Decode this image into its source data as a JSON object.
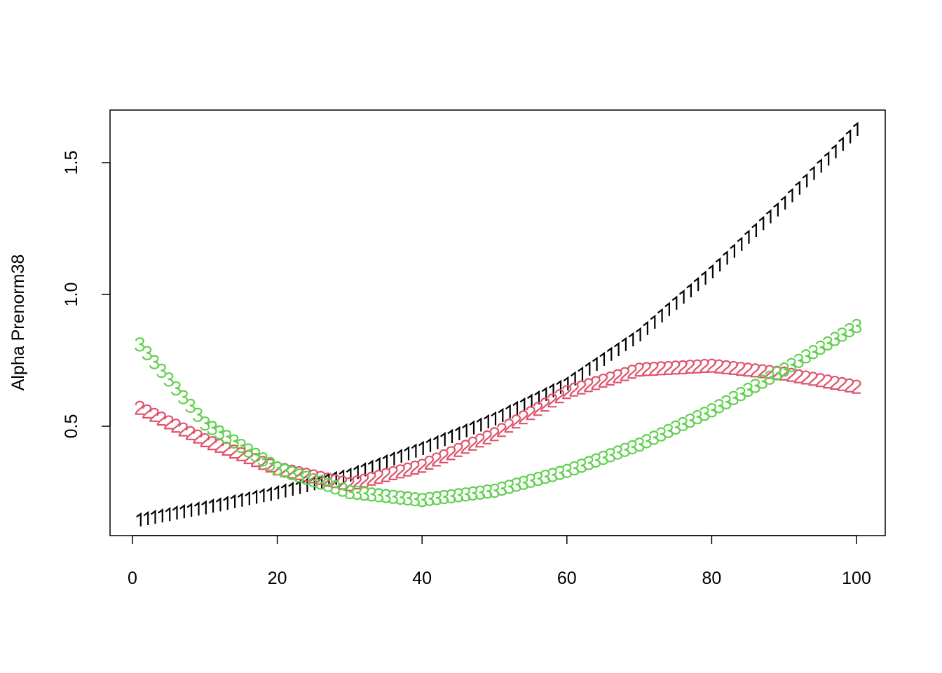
{
  "chart_data": {
    "type": "scatter",
    "title": "",
    "xlabel": "",
    "ylabel": "Alpha Prenorm38",
    "xlim": [
      1,
      100
    ],
    "ylim": [
      0.144,
      1.625
    ],
    "x_ticks": [
      "0",
      "20",
      "40",
      "60",
      "80",
      "100"
    ],
    "y_ticks": [
      "0.5",
      "1.0",
      "1.5"
    ],
    "grid": false,
    "legend": "none",
    "marker_style": "series number used as plotting character",
    "series": [
      {
        "symbol": "1",
        "color": "#000000",
        "values": [
          0.144,
          0.149,
          0.154,
          0.159,
          0.164,
          0.17,
          0.175,
          0.18,
          0.185,
          0.19,
          0.196,
          0.201,
          0.207,
          0.213,
          0.219,
          0.224,
          0.23,
          0.236,
          0.241,
          0.247,
          0.254,
          0.26,
          0.267,
          0.274,
          0.281,
          0.287,
          0.294,
          0.301,
          0.307,
          0.314,
          0.324,
          0.334,
          0.344,
          0.354,
          0.365,
          0.375,
          0.385,
          0.395,
          0.405,
          0.415,
          0.426,
          0.437,
          0.449,
          0.46,
          0.471,
          0.482,
          0.493,
          0.504,
          0.516,
          0.527,
          0.54,
          0.554,
          0.567,
          0.58,
          0.594,
          0.607,
          0.62,
          0.634,
          0.647,
          0.66,
          0.679,
          0.697,
          0.716,
          0.734,
          0.753,
          0.772,
          0.79,
          0.809,
          0.827,
          0.846,
          0.87,
          0.894,
          0.918,
          0.942,
          0.966,
          0.989,
          1.013,
          1.037,
          1.061,
          1.085,
          1.111,
          1.137,
          1.163,
          1.189,
          1.216,
          1.242,
          1.268,
          1.294,
          1.32,
          1.346,
          1.374,
          1.402,
          1.43,
          1.458,
          1.486,
          1.513,
          1.541,
          1.569,
          1.597,
          1.625
        ]
      },
      {
        "symbol": "2",
        "color": "#DF536B",
        "values": [
          0.57,
          0.556,
          0.543,
          0.529,
          0.515,
          0.502,
          0.488,
          0.474,
          0.461,
          0.447,
          0.436,
          0.426,
          0.415,
          0.404,
          0.394,
          0.383,
          0.372,
          0.361,
          0.351,
          0.34,
          0.334,
          0.328,
          0.322,
          0.316,
          0.31,
          0.304,
          0.298,
          0.292,
          0.286,
          0.28,
          0.287,
          0.294,
          0.301,
          0.308,
          0.315,
          0.322,
          0.329,
          0.336,
          0.343,
          0.35,
          0.362,
          0.374,
          0.386,
          0.398,
          0.41,
          0.422,
          0.434,
          0.446,
          0.458,
          0.47,
          0.486,
          0.502,
          0.518,
          0.534,
          0.55,
          0.566,
          0.582,
          0.598,
          0.614,
          0.63,
          0.639,
          0.647,
          0.656,
          0.664,
          0.673,
          0.681,
          0.69,
          0.698,
          0.707,
          0.715,
          0.717,
          0.718,
          0.72,
          0.721,
          0.723,
          0.724,
          0.726,
          0.727,
          0.729,
          0.73,
          0.727,
          0.724,
          0.721,
          0.718,
          0.715,
          0.712,
          0.709,
          0.706,
          0.703,
          0.7,
          0.695,
          0.69,
          0.685,
          0.68,
          0.675,
          0.67,
          0.665,
          0.66,
          0.655,
          0.65
        ]
      },
      {
        "symbol": "3",
        "color": "#61D04F",
        "values": [
          0.81,
          0.777,
          0.743,
          0.71,
          0.677,
          0.643,
          0.61,
          0.577,
          0.543,
          0.51,
          0.493,
          0.476,
          0.459,
          0.442,
          0.425,
          0.408,
          0.391,
          0.374,
          0.357,
          0.34,
          0.331,
          0.322,
          0.313,
          0.304,
          0.295,
          0.286,
          0.277,
          0.268,
          0.259,
          0.25,
          0.247,
          0.244,
          0.241,
          0.238,
          0.235,
          0.232,
          0.229,
          0.226,
          0.223,
          0.22,
          0.224,
          0.227,
          0.231,
          0.234,
          0.238,
          0.241,
          0.245,
          0.248,
          0.252,
          0.255,
          0.263,
          0.27,
          0.278,
          0.285,
          0.293,
          0.3,
          0.308,
          0.315,
          0.323,
          0.33,
          0.34,
          0.35,
          0.36,
          0.37,
          0.38,
          0.39,
          0.4,
          0.41,
          0.42,
          0.43,
          0.443,
          0.456,
          0.469,
          0.482,
          0.495,
          0.508,
          0.521,
          0.534,
          0.547,
          0.56,
          0.576,
          0.591,
          0.607,
          0.622,
          0.638,
          0.653,
          0.669,
          0.684,
          0.7,
          0.715,
          0.732,
          0.748,
          0.765,
          0.781,
          0.798,
          0.814,
          0.831,
          0.847,
          0.864,
          0.88
        ]
      }
    ]
  }
}
